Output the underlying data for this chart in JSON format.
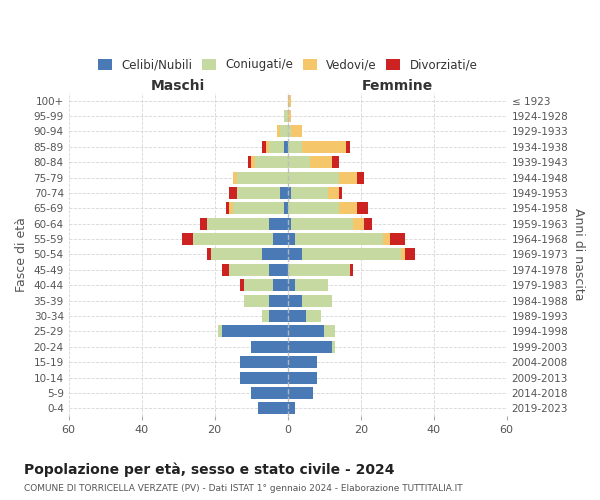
{
  "age_groups": [
    "0-4",
    "5-9",
    "10-14",
    "15-19",
    "20-24",
    "25-29",
    "30-34",
    "35-39",
    "40-44",
    "45-49",
    "50-54",
    "55-59",
    "60-64",
    "65-69",
    "70-74",
    "75-79",
    "80-84",
    "85-89",
    "90-94",
    "95-99",
    "100+"
  ],
  "birth_years": [
    "2019-2023",
    "2014-2018",
    "2009-2013",
    "2004-2008",
    "1999-2003",
    "1994-1998",
    "1989-1993",
    "1984-1988",
    "1979-1983",
    "1974-1978",
    "1969-1973",
    "1964-1968",
    "1959-1963",
    "1954-1958",
    "1949-1953",
    "1944-1948",
    "1939-1943",
    "1934-1938",
    "1929-1933",
    "1924-1928",
    "≤ 1923"
  ],
  "males": {
    "celibi": [
      8,
      10,
      13,
      13,
      10,
      18,
      5,
      5,
      4,
      5,
      7,
      4,
      5,
      1,
      2,
      0,
      0,
      1,
      0,
      0,
      0
    ],
    "coniugati": [
      0,
      0,
      0,
      0,
      0,
      1,
      2,
      7,
      8,
      11,
      14,
      22,
      17,
      14,
      12,
      14,
      9,
      4,
      2,
      1,
      0
    ],
    "vedovi": [
      0,
      0,
      0,
      0,
      0,
      0,
      0,
      0,
      0,
      0,
      0,
      0,
      0,
      1,
      0,
      1,
      1,
      1,
      1,
      0,
      0
    ],
    "divorziati": [
      0,
      0,
      0,
      0,
      0,
      0,
      0,
      0,
      1,
      2,
      1,
      3,
      2,
      1,
      2,
      0,
      1,
      1,
      0,
      0,
      0
    ]
  },
  "females": {
    "nubili": [
      2,
      7,
      8,
      8,
      12,
      10,
      5,
      4,
      2,
      0,
      4,
      2,
      1,
      0,
      1,
      0,
      0,
      0,
      0,
      0,
      0
    ],
    "coniugate": [
      0,
      0,
      0,
      0,
      1,
      3,
      4,
      8,
      9,
      17,
      27,
      24,
      17,
      14,
      10,
      14,
      6,
      4,
      1,
      0,
      0
    ],
    "vedove": [
      0,
      0,
      0,
      0,
      0,
      0,
      0,
      0,
      0,
      0,
      1,
      2,
      3,
      5,
      3,
      5,
      6,
      12,
      3,
      1,
      1
    ],
    "divorziate": [
      0,
      0,
      0,
      0,
      0,
      0,
      0,
      0,
      0,
      1,
      3,
      4,
      2,
      3,
      1,
      2,
      2,
      1,
      0,
      0,
      0
    ]
  },
  "color_celibi": "#4a7ab5",
  "color_coniugati": "#c5d9a0",
  "color_vedovi": "#f5c76a",
  "color_divorziati": "#cc2222",
  "title": "Popolazione per età, sesso e stato civile - 2024",
  "subtitle": "COMUNE DI TORRICELLA VERZATE (PV) - Dati ISTAT 1° gennaio 2024 - Elaborazione TUTTITALIA.IT",
  "xlabel_left": "Maschi",
  "xlabel_right": "Femmine",
  "ylabel_left": "Fasce di età",
  "ylabel_right": "Anni di nascita",
  "xlim": 60,
  "bg_color": "#ffffff",
  "grid_color": "#cccccc"
}
